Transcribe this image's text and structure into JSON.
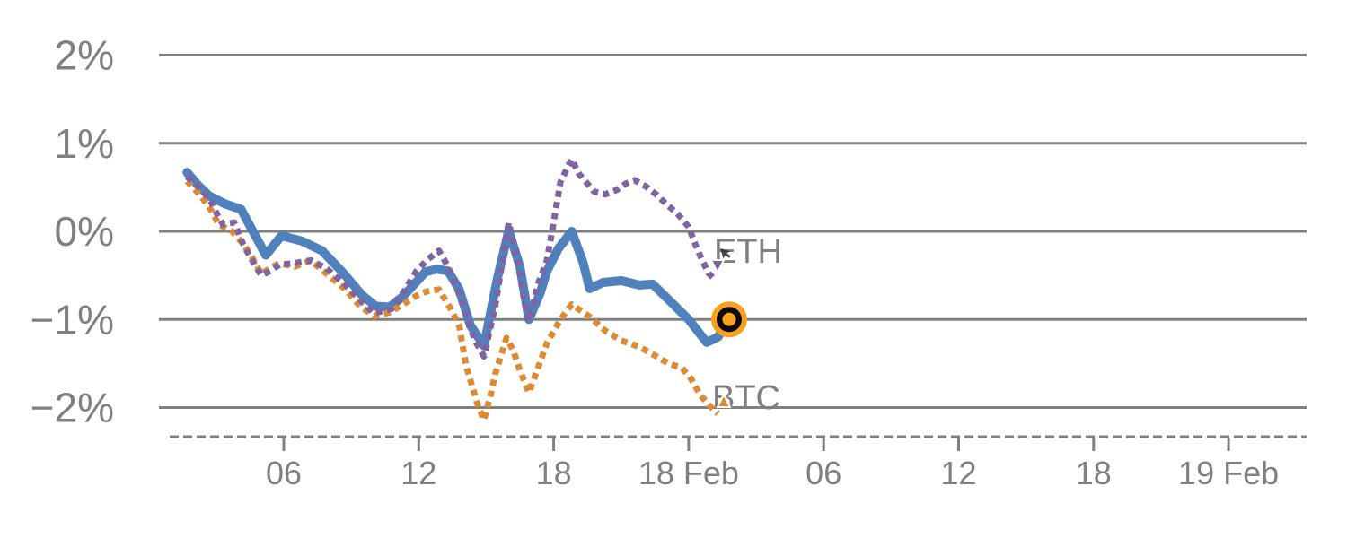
{
  "chart_data": {
    "type": "line",
    "title": null,
    "x_axis": {
      "kind": "time",
      "tick_labels": [
        "06",
        "12",
        "18",
        "18 Feb",
        "06",
        "12",
        "18",
        "19 Feb"
      ],
      "tick_hours": [
        6,
        12,
        18,
        24,
        30,
        36,
        42,
        48
      ],
      "range_hours": [
        0.6,
        51.5
      ],
      "line_style": "dashed",
      "axis_color": "#808080"
    },
    "y_axis": {
      "unit": "%",
      "tick_labels": [
        "2%",
        "1%",
        "0%",
        "−1%",
        "−2%"
      ],
      "tick_values": [
        2,
        1,
        0,
        -1,
        -2
      ],
      "range": [
        -2.33,
        2.6
      ],
      "grid": true,
      "grid_color": "#808080"
    },
    "series": [
      {
        "id": "main-solid",
        "label": null,
        "color": "#4f81bd",
        "style": "solid",
        "width": 10,
        "points": [
          [
            1.7,
            0.67
          ],
          [
            2.2,
            0.52
          ],
          [
            2.7,
            0.4
          ],
          [
            3.4,
            0.31
          ],
          [
            4.1,
            0.25
          ],
          [
            5.2,
            -0.27
          ],
          [
            5.9,
            -0.05
          ],
          [
            6.8,
            -0.11
          ],
          [
            7.7,
            -0.22
          ],
          [
            8.6,
            -0.46
          ],
          [
            9.5,
            -0.73
          ],
          [
            10.1,
            -0.85
          ],
          [
            10.7,
            -0.86
          ],
          [
            11.3,
            -0.74
          ],
          [
            11.8,
            -0.6
          ],
          [
            12.3,
            -0.46
          ],
          [
            12.8,
            -0.43
          ],
          [
            13.3,
            -0.45
          ],
          [
            13.8,
            -0.66
          ],
          [
            14.3,
            -1.07
          ],
          [
            14.9,
            -1.3
          ],
          [
            15.5,
            -0.53
          ],
          [
            16,
            0.01
          ],
          [
            16.5,
            -0.4
          ],
          [
            16.9,
            -1
          ],
          [
            17.4,
            -0.7
          ],
          [
            17.7,
            -0.45
          ],
          [
            18.2,
            -0.2
          ],
          [
            18.8,
            0
          ],
          [
            19.3,
            -0.35
          ],
          [
            19.6,
            -0.65
          ],
          [
            20.2,
            -0.58
          ],
          [
            21,
            -0.56
          ],
          [
            21.8,
            -0.61
          ],
          [
            22.4,
            -0.6
          ],
          [
            23.2,
            -0.8
          ],
          [
            24,
            -1
          ],
          [
            24.8,
            -1.26
          ],
          [
            25.3,
            -1.2
          ],
          [
            25.8,
            -1
          ]
        ]
      },
      {
        "id": "btc",
        "label": "BTC",
        "color": "#dd8a33",
        "style": "dotted",
        "width": 7,
        "points": [
          [
            1.7,
            0.57
          ],
          [
            2.3,
            0.41
          ],
          [
            2.8,
            0.23
          ],
          [
            3.1,
            0.08
          ],
          [
            3.7,
            0
          ],
          [
            4.2,
            -0.14
          ],
          [
            4.6,
            -0.3
          ],
          [
            5,
            -0.48
          ],
          [
            5.4,
            -0.42
          ],
          [
            5.8,
            -0.36
          ],
          [
            6.5,
            -0.4
          ],
          [
            7.2,
            -0.33
          ],
          [
            7.9,
            -0.48
          ],
          [
            8.7,
            -0.65
          ],
          [
            9.4,
            -0.85
          ],
          [
            10,
            -0.96
          ],
          [
            10.7,
            -0.92
          ],
          [
            11.3,
            -0.83
          ],
          [
            11.9,
            -0.73
          ],
          [
            12.4,
            -0.68
          ],
          [
            12.9,
            -0.66
          ],
          [
            13.4,
            -0.87
          ],
          [
            13.8,
            -1.07
          ],
          [
            14.1,
            -1.52
          ],
          [
            14.6,
            -1.95
          ],
          [
            14.9,
            -2.14
          ],
          [
            15.2,
            -1.85
          ],
          [
            15.4,
            -1.62
          ],
          [
            15.9,
            -1.21
          ],
          [
            16.2,
            -1.35
          ],
          [
            16.5,
            -1.58
          ],
          [
            16.9,
            -1.83
          ],
          [
            17.3,
            -1.55
          ],
          [
            17.7,
            -1.27
          ],
          [
            18.3,
            -1
          ],
          [
            18.8,
            -0.83
          ],
          [
            19.2,
            -0.9
          ],
          [
            19.6,
            -0.97
          ],
          [
            20.3,
            -1.13
          ],
          [
            21,
            -1.24
          ],
          [
            21.8,
            -1.31
          ],
          [
            22.5,
            -1.41
          ],
          [
            23.1,
            -1.5
          ],
          [
            23.7,
            -1.55
          ],
          [
            24.1,
            -1.67
          ],
          [
            24.5,
            -1.85
          ],
          [
            24.9,
            -1.97
          ],
          [
            25.3,
            -2.07
          ]
        ]
      },
      {
        "id": "eth",
        "label": "ETH",
        "color": "#8064a2",
        "style": "dotted",
        "width": 7,
        "points": [
          [
            1.7,
            0.62
          ],
          [
            2.4,
            0.46
          ],
          [
            2.8,
            0.32
          ],
          [
            3.1,
            0.16
          ],
          [
            3.3,
            0.08
          ],
          [
            3.8,
            0.1
          ],
          [
            4.2,
            -0.15
          ],
          [
            4.6,
            -0.33
          ],
          [
            5,
            -0.5
          ],
          [
            5.4,
            -0.45
          ],
          [
            5.8,
            -0.38
          ],
          [
            6.5,
            -0.36
          ],
          [
            7.2,
            -0.33
          ],
          [
            7.9,
            -0.42
          ],
          [
            8.7,
            -0.6
          ],
          [
            9.4,
            -0.78
          ],
          [
            10,
            -0.93
          ],
          [
            10.8,
            -0.88
          ],
          [
            11.4,
            -0.66
          ],
          [
            11.9,
            -0.45
          ],
          [
            12.4,
            -0.32
          ],
          [
            12.9,
            -0.22
          ],
          [
            13.3,
            -0.4
          ],
          [
            13.7,
            -0.65
          ],
          [
            14.1,
            -0.94
          ],
          [
            14.5,
            -1.24
          ],
          [
            14.9,
            -1.42
          ],
          [
            15.4,
            -0.85
          ],
          [
            16,
            0.1
          ],
          [
            16.4,
            -0.33
          ],
          [
            16.7,
            -0.8
          ],
          [
            16.9,
            -1.02
          ],
          [
            17.3,
            -0.6
          ],
          [
            17.7,
            -0.33
          ],
          [
            18,
            0.11
          ],
          [
            18.3,
            0.56
          ],
          [
            18.8,
            0.82
          ],
          [
            19.1,
            0.66
          ],
          [
            19.5,
            0.54
          ],
          [
            19.8,
            0.45
          ],
          [
            20.3,
            0.42
          ],
          [
            20.8,
            0.47
          ],
          [
            21.2,
            0.54
          ],
          [
            21.6,
            0.58
          ],
          [
            22.1,
            0.51
          ],
          [
            22.6,
            0.41
          ],
          [
            23,
            0.31
          ],
          [
            23.5,
            0.2
          ],
          [
            24,
            0.05
          ],
          [
            24.3,
            -0.15
          ],
          [
            24.6,
            -0.33
          ],
          [
            24.9,
            -0.48
          ],
          [
            25.2,
            -0.56
          ]
        ]
      }
    ],
    "end_marker": {
      "series": "main-solid",
      "t": 25.8,
      "value": -1.0,
      "fill": "#f7a11e",
      "ring_color": "#0c0c0c"
    },
    "annotations": {
      "eth_label": {
        "text": "ETH",
        "color": "#8064a2"
      },
      "btc_label": {
        "text": "BTC",
        "color": "#dd8a33"
      }
    }
  },
  "cursor": {
    "present": true,
    "shape": "arrow"
  }
}
